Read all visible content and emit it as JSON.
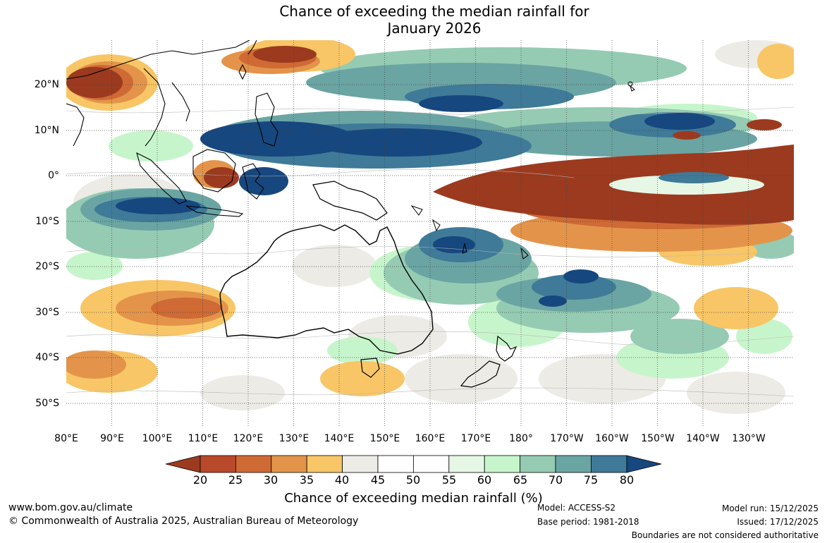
{
  "title": {
    "line1": "Chance of exceeding the median rainfall for",
    "line2": "January 2026"
  },
  "map": {
    "latitude_labels": [
      "20°N",
      "10°N",
      "0°",
      "10°S",
      "20°S",
      "30°S",
      "40°S",
      "50°S"
    ],
    "longitude_labels": [
      "80°E",
      "90°E",
      "100°E",
      "110°E",
      "120°E",
      "130°E",
      "140°E",
      "150°E",
      "160°E",
      "170°E",
      "180°",
      "170°W",
      "160°W",
      "150°W",
      "140°W",
      "130°W"
    ]
  },
  "colorbar": {
    "ticks": [
      "20",
      "25",
      "30",
      "35",
      "40",
      "45",
      "50",
      "55",
      "60",
      "65",
      "70",
      "75",
      "80"
    ],
    "colors": [
      "#9c3a1f",
      "#b8492a",
      "#cf6a35",
      "#e3944a",
      "#f8c666",
      "#edebe6",
      "#ffffff",
      "#ffffff",
      "#e6f7e6",
      "#c7f5cb",
      "#95cbb3",
      "#6aa5a3",
      "#3f7a98",
      "#16477f"
    ],
    "label": "Chance of exceeding median rainfall (%)"
  },
  "footer": {
    "website": "www.bom.gov.au/climate",
    "copyright": "© Commonwealth of Australia 2025, Australian Bureau of Meteorology",
    "model": "Model: ACCESS-S2",
    "base_period": "Base period: 1981-2018",
    "model_run": "Model run: 15/12/2025",
    "issued": "Issued: 17/12/2025",
    "disclaimer": "Boundaries are not considered authoritative"
  },
  "palette": {
    "very_dry": "#9c3a1f",
    "dry": "#cf6a35",
    "slightly_dry": "#f8c666",
    "neutral": "#edebe6",
    "slightly_wet": "#c7f5cb",
    "wet": "#6aa5a3",
    "very_wet": "#16477f"
  }
}
